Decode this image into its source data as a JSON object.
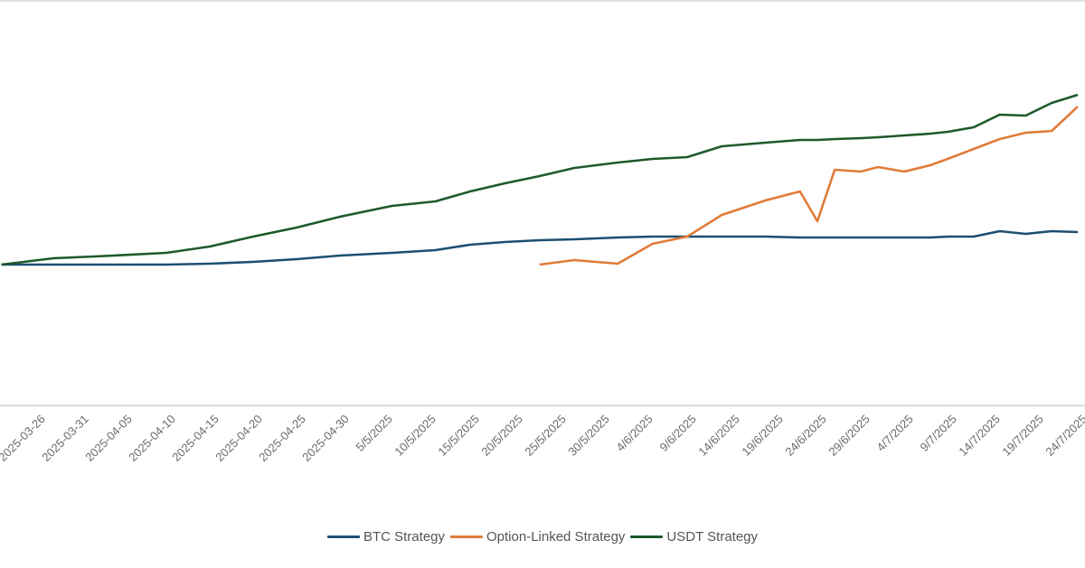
{
  "chart_data": {
    "type": "line",
    "title": "",
    "xlabel": "",
    "ylabel": "",
    "ylim": [
      -15.6,
      29.3
    ],
    "grid": false,
    "legend_position": "bottom",
    "x_tick_labels": [
      "2025-03-26",
      "2025-03-31",
      "2025-04-05",
      "2025-04-10",
      "2025-04-15",
      "2025-04-20",
      "2025-04-25",
      "2025-04-30",
      "5/5/2025",
      "10/5/2025",
      "15/5/2025",
      "20/5/2025",
      "25/5/2025",
      "30/5/2025",
      "4/6/2025",
      "9/6/2025",
      "14/6/2025",
      "19/6/2025",
      "24/6/2025",
      "29/6/2025",
      "4/7/2025",
      "9/7/2025",
      "14/7/2025",
      "19/7/2025",
      "24/7/2025"
    ],
    "x": [
      "2025-03-22",
      "2025-03-28",
      "2025-04-04",
      "2025-04-10",
      "2025-04-15",
      "2025-04-20",
      "2025-04-25",
      "2025-04-30",
      "2025-05-06",
      "2025-05-11",
      "2025-05-15",
      "2025-05-19",
      "2025-05-23",
      "2025-05-27",
      "2025-06-01",
      "2025-06-05",
      "2025-06-09",
      "2025-06-13",
      "2025-06-18",
      "2025-06-22",
      "2025-06-24",
      "2025-06-26",
      "2025-06-29",
      "2025-07-01",
      "2025-07-04",
      "2025-07-07",
      "2025-07-09",
      "2025-07-12",
      "2025-07-15",
      "2025-07-18",
      "2025-07-21",
      "2025-07-24"
    ],
    "series": [
      {
        "name": "BTC Strategy",
        "color": "#1d4f73",
        "values": [
          0,
          0,
          0,
          0,
          0.1,
          0.3,
          0.6,
          1,
          1.3,
          1.6,
          2.2,
          2.5,
          2.7,
          2.8,
          3,
          3.1,
          3.1,
          3.1,
          3.1,
          3,
          3,
          3,
          3,
          3,
          3,
          3,
          3.1,
          3.1,
          3.7,
          3.4,
          3.7,
          3.6
        ]
      },
      {
        "name": "Option-Linked Strategy",
        "color": "#e07b39",
        "values": [
          null,
          null,
          null,
          null,
          null,
          null,
          null,
          null,
          null,
          null,
          null,
          null,
          0,
          0.5,
          0.1,
          2.3,
          3.1,
          5.5,
          7.1,
          8.1,
          4.8,
          10.5,
          10.3,
          10.8,
          10.3,
          11,
          11.7,
          12.8,
          13.9,
          14.6,
          14.8,
          17.5
        ]
      },
      {
        "name": "USDT Strategy",
        "color": "#1e5a2a",
        "values": [
          0,
          0.7,
          1,
          1.3,
          2,
          3.1,
          4.1,
          5.3,
          6.5,
          7,
          8.1,
          9,
          9.8,
          10.7,
          11.3,
          11.7,
          11.9,
          13.1,
          13.5,
          13.8,
          13.8,
          13.9,
          14,
          14.1,
          14.3,
          14.5,
          14.7,
          15.2,
          16.6,
          16.5,
          17.9,
          18.8
        ]
      }
    ]
  }
}
